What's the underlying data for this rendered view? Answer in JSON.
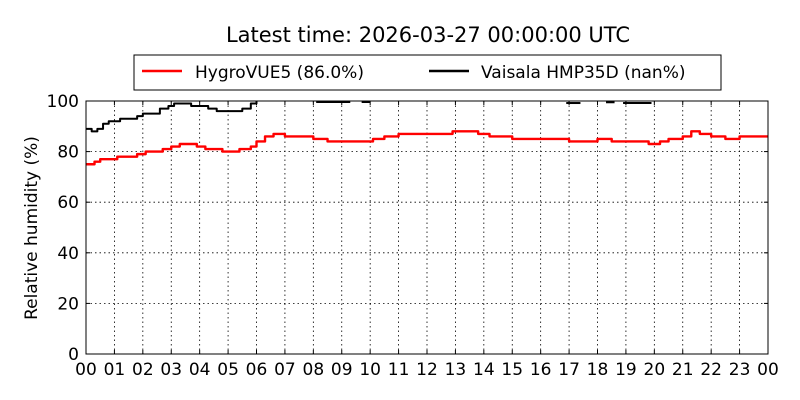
{
  "chart_data": {
    "type": "line",
    "title": "Latest time: 2026-03-27 00:00:00 UTC",
    "ylabel": "Relative humidity (%)",
    "xlabel": "",
    "xlim": [
      0,
      24
    ],
    "ylim": [
      0,
      100
    ],
    "yticks": [
      0,
      20,
      40,
      60,
      80,
      100
    ],
    "xticks": [
      0,
      1,
      2,
      3,
      4,
      5,
      6,
      7,
      8,
      9,
      10,
      11,
      12,
      13,
      14,
      15,
      16,
      17,
      18,
      19,
      20,
      21,
      22,
      23,
      24
    ],
    "xtick_labels": [
      "00",
      "01",
      "02",
      "03",
      "04",
      "05",
      "06",
      "07",
      "08",
      "09",
      "10",
      "11",
      "12",
      "13",
      "14",
      "15",
      "16",
      "17",
      "18",
      "19",
      "20",
      "21",
      "22",
      "23",
      "00"
    ],
    "grid": true,
    "legend_position": "top-center",
    "series": [
      {
        "name": "HygroVUE5 (86.0%)",
        "color": "#ff0000",
        "x": [
          0,
          0.2,
          0.3,
          0.5,
          0.8,
          1.1,
          1.5,
          1.8,
          2.1,
          2.5,
          2.7,
          3.0,
          3.3,
          3.6,
          3.9,
          4.2,
          4.5,
          4.8,
          5.1,
          5.4,
          5.8,
          6.0,
          6.3,
          6.6,
          7.0,
          7.5,
          8.0,
          8.5,
          9.0,
          9.4,
          9.8,
          10.1,
          10.5,
          11.0,
          11.5,
          12.0,
          12.5,
          12.9,
          13.2,
          13.5,
          13.8,
          14.2,
          14.6,
          15.0,
          15.5,
          16.0,
          16.5,
          17.0,
          17.5,
          18.0,
          18.5,
          19.0,
          19.5,
          19.8,
          20.2,
          20.5,
          20.8,
          21.0,
          21.3,
          21.6,
          22.0,
          22.5,
          23.0,
          23.5,
          24.0
        ],
        "y": [
          75,
          75,
          76,
          77,
          77,
          78,
          78,
          79,
          80,
          80,
          81,
          82,
          83,
          83,
          82,
          81,
          81,
          80,
          80,
          81,
          82,
          84,
          86,
          87,
          86,
          86,
          85,
          84,
          84,
          84,
          84,
          85,
          86,
          87,
          87,
          87,
          87,
          88,
          88,
          88,
          87,
          86,
          86,
          85,
          85,
          85,
          85,
          84,
          84,
          85,
          84,
          84,
          84,
          83,
          84,
          85,
          85,
          86,
          88,
          87,
          86,
          85,
          86,
          86,
          86
        ]
      },
      {
        "name": "Vaisala HMP35D (nan%)",
        "color": "#000000",
        "x": [
          0,
          0.2,
          0.4,
          0.6,
          0.8,
          1.0,
          1.2,
          1.5,
          1.8,
          2.0,
          2.3,
          2.6,
          2.9,
          3.1,
          3.4,
          3.7,
          4.0,
          4.3,
          4.6,
          4.9,
          5.2,
          5.5,
          5.8,
          6.0
        ],
        "y": [
          89,
          88,
          89,
          91,
          92,
          92,
          93,
          93,
          94,
          95,
          95,
          97,
          98,
          99,
          99,
          98,
          98,
          97,
          96,
          96,
          96,
          97,
          99,
          100
        ]
      }
    ],
    "black_segments": [
      {
        "x": [
          8.1,
          9.3
        ],
        "y": [
          99.6,
          99.6
        ]
      },
      {
        "x": [
          9.7,
          10.0
        ],
        "y": [
          99.6,
          99.6
        ]
      },
      {
        "x": [
          16.9,
          17.4
        ],
        "y": [
          99.2,
          99.2
        ]
      },
      {
        "x": [
          18.3,
          18.6
        ],
        "y": [
          99.5,
          99.5
        ]
      },
      {
        "x": [
          18.9,
          19.9
        ],
        "y": [
          99.2,
          99.2
        ]
      }
    ]
  }
}
